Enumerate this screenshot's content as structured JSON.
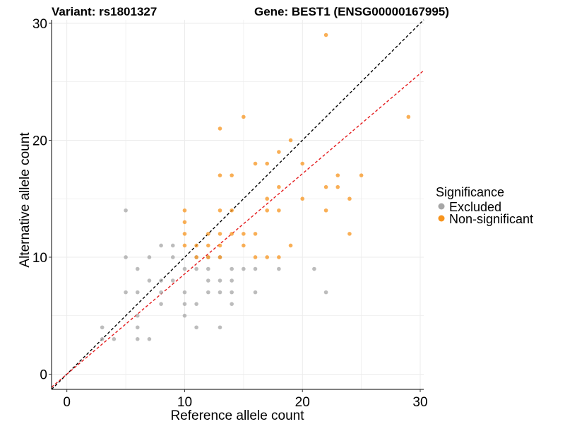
{
  "chart_data": {
    "type": "scatter",
    "title_left": "Variant: rs1801327",
    "title_right": "Gene: BEST1 (ENSG00000167995)",
    "xlabel": "Reference allele count",
    "ylabel": "Alternative allele count",
    "xlim": [
      -1.3,
      30.3
    ],
    "ylim": [
      -1.3,
      30.3
    ],
    "x_ticks": [
      0,
      10,
      20,
      30
    ],
    "y_ticks": [
      0,
      10,
      20,
      30
    ],
    "grid": true,
    "legend": {
      "title": "Significance",
      "position": "right",
      "entries": [
        {
          "label": "Excluded",
          "color": "#a6a6a6"
        },
        {
          "label": "Non-significant",
          "color": "#f7941d"
        }
      ]
    },
    "reference_lines": [
      {
        "slope": 1,
        "intercept": 0,
        "color": "#000000",
        "style": "dashed"
      },
      {
        "slope": 0.857,
        "intercept": 0,
        "color": "#e41a1c",
        "style": "dashed"
      }
    ],
    "series": [
      {
        "name": "Excluded",
        "color": "#a6a6a6",
        "points": [
          [
            5,
            14
          ],
          [
            5,
            10
          ],
          [
            5,
            7
          ],
          [
            3,
            4
          ],
          [
            3,
            3
          ],
          [
            4,
            3
          ],
          [
            6,
            9
          ],
          [
            6,
            7
          ],
          [
            6,
            5
          ],
          [
            6,
            4
          ],
          [
            6,
            3
          ],
          [
            7,
            10
          ],
          [
            7,
            8
          ],
          [
            7,
            3
          ],
          [
            8,
            11
          ],
          [
            8,
            8
          ],
          [
            8,
            7
          ],
          [
            8,
            6
          ],
          [
            9,
            11
          ],
          [
            9,
            10
          ],
          [
            9,
            8
          ],
          [
            10,
            9
          ],
          [
            10,
            7
          ],
          [
            10,
            6
          ],
          [
            10,
            5
          ],
          [
            11,
            10
          ],
          [
            11,
            9
          ],
          [
            11,
            6
          ],
          [
            11,
            4
          ],
          [
            12,
            10
          ],
          [
            12,
            9
          ],
          [
            12,
            8
          ],
          [
            12,
            7
          ],
          [
            13,
            10
          ],
          [
            13,
            8
          ],
          [
            13,
            7
          ],
          [
            13,
            4
          ],
          [
            14,
            9
          ],
          [
            14,
            8
          ],
          [
            14,
            7
          ],
          [
            14,
            6
          ],
          [
            15,
            9
          ],
          [
            16,
            9
          ],
          [
            16,
            7
          ],
          [
            18,
            9
          ],
          [
            21,
            9
          ],
          [
            22,
            7
          ]
        ]
      },
      {
        "name": "Non-significant",
        "color": "#f7941d",
        "points": [
          [
            22,
            29
          ],
          [
            15,
            22
          ],
          [
            29,
            22
          ],
          [
            13,
            21
          ],
          [
            19,
            20
          ],
          [
            18,
            19
          ],
          [
            16,
            18
          ],
          [
            17,
            18
          ],
          [
            20,
            18
          ],
          [
            13,
            17
          ],
          [
            14,
            17
          ],
          [
            23,
            17
          ],
          [
            25,
            17
          ],
          [
            18,
            16
          ],
          [
            22,
            16
          ],
          [
            23,
            16
          ],
          [
            17,
            15
          ],
          [
            20,
            15
          ],
          [
            24,
            15
          ],
          [
            13,
            14
          ],
          [
            14,
            14
          ],
          [
            17,
            14
          ],
          [
            18,
            14
          ],
          [
            22,
            14
          ],
          [
            10,
            14
          ],
          [
            10,
            13
          ],
          [
            10,
            12
          ],
          [
            10,
            11
          ],
          [
            11,
            11
          ],
          [
            12,
            12
          ],
          [
            12,
            11
          ],
          [
            12,
            10
          ],
          [
            11,
            10
          ],
          [
            13,
            12
          ],
          [
            13,
            11
          ],
          [
            13,
            10
          ],
          [
            14,
            12
          ],
          [
            15,
            12
          ],
          [
            15,
            11
          ],
          [
            16,
            12
          ],
          [
            16,
            10
          ],
          [
            17,
            10
          ],
          [
            18,
            10
          ],
          [
            19,
            11
          ],
          [
            24,
            12
          ]
        ]
      }
    ]
  }
}
